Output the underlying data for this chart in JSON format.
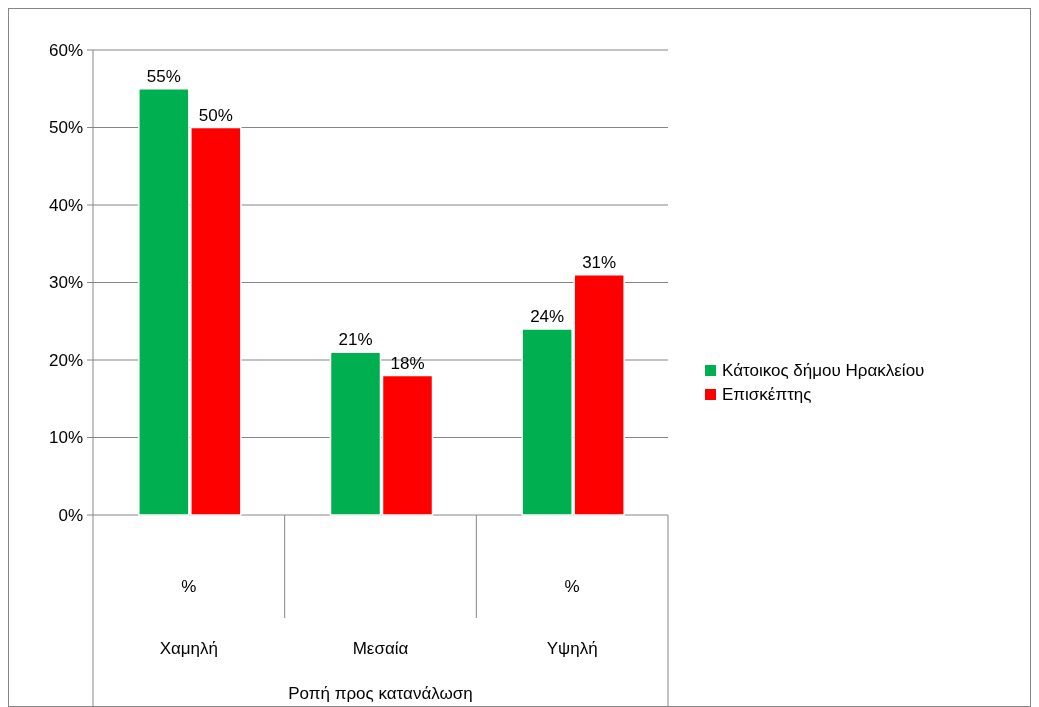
{
  "chart_data": {
    "type": "bar",
    "categories": [
      "Χαμηλή",
      "Μεσαία",
      "Υψηλή"
    ],
    "xlabel": "Ροπή προς κατανάλωση",
    "annotations": [
      "%",
      "%"
    ],
    "series": [
      {
        "name": "Κάτοικος δήμου Ηρακλείου",
        "color": "#00b050",
        "values": [
          55,
          21,
          24
        ],
        "value_labels": [
          "55%",
          "21%",
          "24%"
        ]
      },
      {
        "name": "Επισκέπτης",
        "color": "#ff0000",
        "values": [
          50,
          18,
          31
        ],
        "value_labels": [
          "50%",
          "18%",
          "31%"
        ]
      }
    ],
    "ylim": [
      0,
      60
    ],
    "yticks": [
      {
        "value": 0,
        "label": "0%"
      },
      {
        "value": 10,
        "label": "10%"
      },
      {
        "value": 20,
        "label": "20%"
      },
      {
        "value": 30,
        "label": "30%"
      },
      {
        "value": 40,
        "label": "40%"
      },
      {
        "value": 50,
        "label": "50%"
      },
      {
        "value": 60,
        "label": "60%"
      }
    ],
    "grid": "y",
    "legend": "right"
  }
}
